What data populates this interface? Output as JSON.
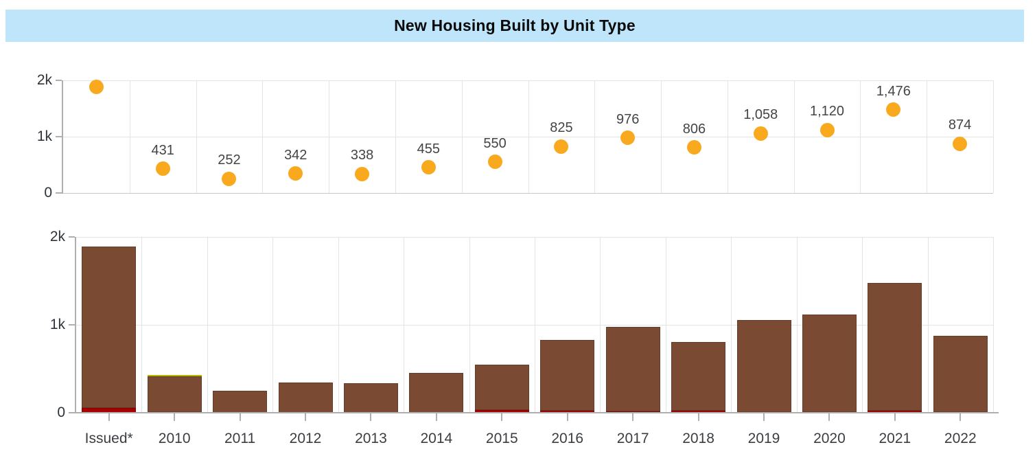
{
  "title": "New Housing Built by Unit Type",
  "colors": {
    "banner_bg": "#BEE5FA",
    "title_text": "#0A0A0A",
    "marker_orange": "#F9A91E",
    "bar_brown": "#7B4A32",
    "bar_red": "#A80000",
    "bar_yellow": "#E5E100",
    "gridline": "#E4E4E4",
    "baseline": "#C6C6C6",
    "axis": "#AFAFAF",
    "ytick_text": "#2F3337",
    "xtick_text": "#3A3E42",
    "data_label_text": "#444444"
  },
  "categories": [
    "Issued*",
    "2010",
    "2011",
    "2012",
    "2013",
    "2014",
    "2015",
    "2016",
    "2017",
    "2018",
    "2019",
    "2020",
    "2021",
    "2022"
  ],
  "chart_data": [
    {
      "type": "scatter",
      "title": "",
      "categories": [
        "Issued*",
        "2010",
        "2011",
        "2012",
        "2013",
        "2014",
        "2015",
        "2016",
        "2017",
        "2018",
        "2019",
        "2020",
        "2021",
        "2022"
      ],
      "values": [
        1890,
        431,
        252,
        342,
        338,
        455,
        550,
        825,
        976,
        806,
        1058,
        1120,
        1476,
        874
      ],
      "point_labels": [
        "",
        "431",
        "252",
        "342",
        "338",
        "455",
        "550",
        "825",
        "976",
        "806",
        "1,058",
        "1,120",
        "1,476",
        "874"
      ],
      "marker_color": "#F9A91E",
      "ylim": [
        0,
        2000
      ],
      "yticks": [
        {
          "label": "2k",
          "value": 2000
        },
        {
          "label": "1k",
          "value": 1000
        },
        {
          "label": "0",
          "value": 0
        }
      ],
      "grid": true,
      "legend": "none",
      "x_axis_labels_shown": false
    },
    {
      "type": "bar",
      "stacked": true,
      "title": "",
      "categories": [
        "Issued*",
        "2010",
        "2011",
        "2012",
        "2013",
        "2014",
        "2015",
        "2016",
        "2017",
        "2018",
        "2019",
        "2020",
        "2021",
        "2022"
      ],
      "series": [
        {
          "name": "red-segment",
          "color": "#A80000",
          "values": [
            55,
            10,
            0,
            0,
            0,
            0,
            30,
            25,
            15,
            20,
            8,
            8,
            25,
            10
          ]
        },
        {
          "name": "brown-segment",
          "color": "#7B4A32",
          "values": [
            1835,
            406,
            252,
            342,
            338,
            455,
            520,
            800,
            961,
            786,
            1050,
            1112,
            1451,
            864
          ]
        },
        {
          "name": "yellow-segment",
          "color": "#E5E100",
          "values": [
            0,
            15,
            0,
            0,
            0,
            0,
            0,
            0,
            0,
            0,
            0,
            0,
            0,
            0
          ]
        }
      ],
      "totals": [
        1890,
        431,
        252,
        342,
        338,
        455,
        550,
        825,
        976,
        806,
        1058,
        1120,
        1476,
        874
      ],
      "ylim": [
        0,
        2000
      ],
      "yticks": [
        {
          "label": "2k",
          "value": 2000
        },
        {
          "label": "1k",
          "value": 1000
        },
        {
          "label": "0",
          "value": 0
        }
      ],
      "grid": true,
      "legend": "none",
      "x_axis_labels_shown": true
    }
  ]
}
